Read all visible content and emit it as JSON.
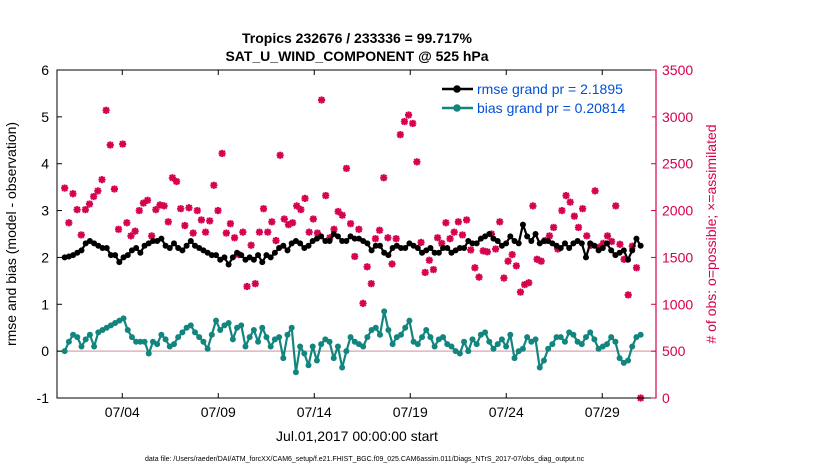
{
  "chart_data": {
    "type": "line",
    "title_line1": "Tropics 232676 / 233336 = 99.717%",
    "title_line2": "SAT_U_WIND_COMPONENT @ 525 hPa",
    "xlabel": "Jul.01,2017 00:00:00 start",
    "ylabel_left": "rmse and bias (model - observation)",
    "ylabel_right": "# of obs: o=possible; ×=assimilated",
    "footer": "data file: /Users/raeder/DAI/ATM_forcXX/CAM6_setup/f.e21.FHIST_BGC.f09_025.CAM6assim.011/Diags_NTrS_2017-07/obs_diag_output.nc",
    "xlim": [
      0.6,
      31.8
    ],
    "ylim_left": [
      -1,
      6
    ],
    "ylim_right": [
      0,
      3500
    ],
    "x_ticks": [
      4,
      9,
      14,
      19,
      24,
      29
    ],
    "x_tick_labels": [
      "07/04",
      "07/09",
      "07/14",
      "07/19",
      "07/24",
      "07/29"
    ],
    "y_ticks_left": [
      -1,
      0,
      1,
      2,
      3,
      4,
      5,
      6
    ],
    "y_tick_labels_left": [
      "-1",
      "0",
      "1",
      "2",
      "3",
      "4",
      "5",
      "6"
    ],
    "y_ticks_right": [
      0,
      500,
      1000,
      1500,
      2000,
      2500,
      3000,
      3500
    ],
    "y_tick_labels_right": [
      "0",
      "500",
      "1000",
      "1500",
      "2000",
      "2500",
      "3000",
      "3500"
    ],
    "colors": {
      "rmse": "#000000",
      "bias": "#13857f",
      "obs": "#d6004f",
      "zero_line": "#d9a6ad",
      "legend_text": "#0050d8"
    },
    "series": [
      {
        "name": "rmse grand pr = 2.1895",
        "key": "rmse",
        "y_axis": "left",
        "values": [
          2.0,
          2.02,
          2.05,
          2.1,
          2.15,
          2.3,
          2.35,
          2.3,
          2.25,
          2.2,
          2.2,
          2.05,
          2.05,
          1.9,
          2.0,
          2.05,
          2.15,
          2.2,
          2.1,
          2.25,
          2.3,
          2.35,
          2.35,
          2.4,
          2.25,
          2.2,
          2.3,
          2.2,
          2.15,
          2.25,
          2.35,
          2.25,
          2.2,
          2.15,
          2.1,
          2.05,
          2.05,
          1.95,
          2.0,
          1.85,
          2.0,
          2.1,
          2.05,
          1.95,
          2.0,
          1.95,
          2.05,
          1.9,
          2.05,
          2.0,
          2.1,
          2.2,
          2.25,
          2.15,
          2.3,
          2.35,
          2.3,
          2.2,
          2.25,
          2.35,
          2.4,
          2.45,
          2.35,
          2.35,
          2.5,
          2.45,
          2.35,
          2.35,
          2.45,
          2.4,
          2.4,
          2.35,
          2.3,
          2.15,
          2.25,
          2.25,
          2.1,
          2.05,
          2.2,
          2.25,
          2.2,
          2.2,
          2.3,
          2.25,
          2.2,
          2.1,
          2.15,
          2.2,
          2.1,
          2.1,
          2.2,
          2.2,
          2.1,
          2.15,
          2.2,
          2.2,
          2.35,
          2.3,
          2.3,
          2.4,
          2.45,
          2.5,
          2.4,
          2.35,
          2.25,
          2.3,
          2.45,
          2.35,
          2.3,
          2.7,
          2.45,
          2.35,
          2.5,
          2.3,
          2.35,
          2.35,
          2.3,
          2.25,
          2.2,
          2.3,
          2.2,
          2.3,
          2.35,
          2.3,
          2.0,
          2.3,
          2.25,
          2.15,
          2.2,
          2.3,
          2.15,
          2.05,
          2.1,
          2.15,
          1.95,
          2.15,
          2.4,
          2.25
        ]
      },
      {
        "name": "bias grand pr = 0.20814",
        "key": "bias",
        "y_axis": "left",
        "values": [
          0.0,
          0.2,
          0.35,
          0.3,
          0.1,
          0.25,
          0.35,
          0.1,
          0.4,
          0.45,
          0.5,
          0.55,
          0.6,
          0.65,
          0.7,
          0.45,
          0.3,
          0.2,
          0.2,
          0.2,
          -0.05,
          0.2,
          0.15,
          0.35,
          0.25,
          0.1,
          0.15,
          0.3,
          0.4,
          0.5,
          0.55,
          0.4,
          0.3,
          0.2,
          0.05,
          0.35,
          0.65,
          0.45,
          0.55,
          0.6,
          0.25,
          0.5,
          0.55,
          0.1,
          0.3,
          0.45,
          0.2,
          0.5,
          0.3,
          0.1,
          0.25,
          0.3,
          -0.15,
          0.35,
          0.5,
          -0.45,
          0.1,
          -0.05,
          -0.3,
          0.1,
          -0.2,
          0.15,
          0.25,
          0.2,
          -0.15,
          0.1,
          -0.35,
          0.0,
          0.3,
          0.2,
          0.15,
          0.1,
          0.3,
          0.45,
          0.5,
          0.35,
          0.85,
          0.45,
          0.15,
          0.3,
          0.35,
          0.5,
          0.65,
          0.2,
          0.15,
          0.3,
          0.45,
          0.3,
          0.1,
          0.25,
          0.3,
          0.15,
          0.1,
          0.0,
          -0.05,
          0.2,
          0.0,
          0.25,
          0.15,
          0.35,
          0.4,
          0.2,
          0.05,
          0.15,
          0.25,
          0.1,
          0.35,
          -0.15,
          0.0,
          0.05,
          0.3,
          0.2,
          0.25,
          -0.35,
          -0.2,
          0.05,
          0.15,
          0.3,
          0.3,
          0.2,
          0.4,
          0.35,
          0.2,
          0.15,
          0.3,
          0.4,
          0.25,
          0.05,
          0.1,
          0.15,
          0.3,
          0.2,
          -0.15,
          -0.25,
          -0.2,
          0.1,
          0.3,
          0.35
        ]
      },
      {
        "name": "# of obs",
        "key": "obs",
        "y_axis": "right",
        "values": [
          2240,
          1870,
          2180,
          2010,
          1740,
          2010,
          2070,
          2150,
          2210,
          2330,
          3070,
          2700,
          2230,
          1800,
          2710,
          1870,
          1730,
          1780,
          2000,
          2080,
          2110,
          1730,
          2010,
          2060,
          2050,
          1880,
          2350,
          2310,
          2020,
          1840,
          2030,
          1760,
          2000,
          1900,
          1770,
          1890,
          2270,
          2000,
          2610,
          1760,
          1860,
          1710,
          1530,
          1770,
          1190,
          1630,
          1220,
          1770,
          2020,
          1770,
          1880,
          1680,
          2590,
          1910,
          1850,
          1870,
          2050,
          2010,
          2130,
          1770,
          1910,
          1760,
          3180,
          2160,
          1710,
          1800,
          1990,
          1950,
          2450,
          1860,
          1510,
          1800,
          1010,
          1400,
          1220,
          1700,
          1790,
          2350,
          1710,
          1430,
          1700,
          2810,
          2950,
          3020,
          2930,
          2520,
          1660,
          1340,
          1470,
          1370,
          1710,
          1650,
          1870,
          1700,
          1770,
          1880,
          1740,
          1900,
          1580,
          1390,
          1290,
          1570,
          1560,
          1750,
          1590,
          1880,
          1280,
          1460,
          1530,
          1410,
          1130,
          1210,
          1230,
          2050,
          1480,
          1460,
          1680,
          1730,
          1820,
          1590,
          2000,
          2160,
          2090,
          1940,
          1820,
          2020,
          1730,
          1630,
          2210,
          1610,
          1650,
          1730,
          1670,
          2050,
          1640,
          1480,
          1100,
          1620,
          1390,
          0
        ]
      }
    ]
  }
}
